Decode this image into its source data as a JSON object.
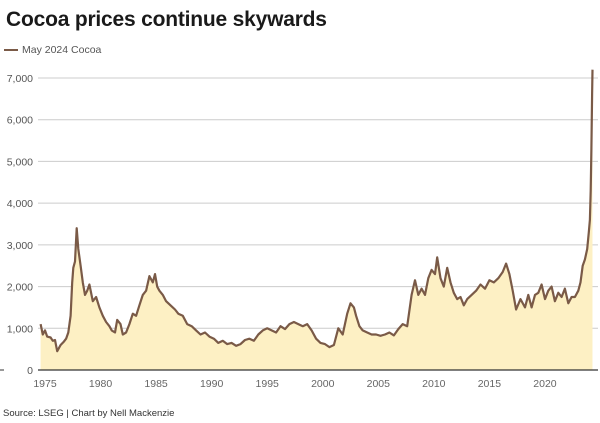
{
  "header": {
    "title": "Cocoa prices continue skywards"
  },
  "legend": {
    "label": "May 2024 Cocoa"
  },
  "footer": {
    "source": "Source: LSEG | Chart by Nell Mackenzie"
  },
  "colors": {
    "line": "#7a5a47",
    "fill": "#fdf0c4",
    "grid": "#cccccc",
    "axis": "#333333"
  },
  "chart_data": {
    "type": "area",
    "title": "Cocoa prices continue skywards",
    "series_name": "May 2024 Cocoa",
    "xlabel": "",
    "ylabel": "",
    "xlim": [
      1974.6,
      2024.3
    ],
    "ylim": [
      0,
      7000
    ],
    "grid": true,
    "legend_position": "top-left",
    "y_ticks": [
      0,
      1000,
      2000,
      3000,
      4000,
      5000,
      6000,
      7000
    ],
    "y_tick_labels": [
      "0",
      "1,000",
      "2,000",
      "3,000",
      "4,000",
      "5,000",
      "6,000",
      "7,000"
    ],
    "x_ticks": [
      1975,
      1980,
      1985,
      1990,
      1995,
      2000,
      2005,
      2010,
      2015,
      2020
    ],
    "x_tick_labels": [
      "1975",
      "1980",
      "1985",
      "1990",
      "1995",
      "2000",
      "2005",
      "2010",
      "2015",
      "2020"
    ],
    "x": [
      1974.6,
      1974.8,
      1975.0,
      1975.2,
      1975.5,
      1975.7,
      1975.9,
      1976.1,
      1976.4,
      1976.7,
      1976.9,
      1977.1,
      1977.3,
      1977.45,
      1977.55,
      1977.7,
      1977.85,
      1978.0,
      1978.2,
      1978.4,
      1978.6,
      1978.8,
      1979.0,
      1979.3,
      1979.6,
      1979.9,
      1980.2,
      1980.5,
      1980.8,
      1981.0,
      1981.3,
      1981.5,
      1981.8,
      1982.0,
      1982.3,
      1982.6,
      1982.9,
      1983.2,
      1983.5,
      1983.8,
      1984.1,
      1984.4,
      1984.7,
      1984.9,
      1985.1,
      1985.3,
      1985.6,
      1985.9,
      1986.3,
      1986.7,
      1987.0,
      1987.4,
      1987.8,
      1988.2,
      1988.6,
      1989.0,
      1989.4,
      1989.8,
      1990.2,
      1990.6,
      1991.0,
      1991.4,
      1991.8,
      1992.2,
      1992.6,
      1993.0,
      1993.4,
      1993.8,
      1994.2,
      1994.6,
      1995.0,
      1995.4,
      1995.8,
      1996.2,
      1996.6,
      1997.0,
      1997.4,
      1997.8,
      1998.2,
      1998.6,
      1999.0,
      1999.4,
      1999.8,
      2000.2,
      2000.6,
      2001.0,
      2001.4,
      2001.8,
      2002.2,
      2002.5,
      2002.8,
      2003.0,
      2003.3,
      2003.6,
      2004.0,
      2004.4,
      2004.8,
      2005.2,
      2005.6,
      2006.0,
      2006.4,
      2006.8,
      2007.2,
      2007.6,
      2008.0,
      2008.3,
      2008.6,
      2008.9,
      2009.2,
      2009.5,
      2009.8,
      2010.1,
      2010.3,
      2010.6,
      2010.9,
      2011.2,
      2011.5,
      2011.8,
      2012.1,
      2012.4,
      2012.7,
      2013.0,
      2013.4,
      2013.8,
      2014.2,
      2014.6,
      2015.0,
      2015.4,
      2015.8,
      2016.2,
      2016.5,
      2016.8,
      2017.1,
      2017.4,
      2017.8,
      2018.2,
      2018.5,
      2018.8,
      2019.1,
      2019.4,
      2019.7,
      2020.0,
      2020.3,
      2020.6,
      2020.9,
      2021.2,
      2021.5,
      2021.8,
      2022.1,
      2022.4,
      2022.7,
      2023.0,
      2023.2,
      2023.4,
      2023.6,
      2023.8,
      2023.95,
      2024.05,
      2024.12,
      2024.18,
      2024.24,
      2024.28
    ],
    "values": [
      1100,
      850,
      950,
      800,
      780,
      700,
      720,
      450,
      600,
      680,
      750,
      900,
      1300,
      2100,
      2450,
      2600,
      3400,
      2900,
      2500,
      2100,
      1800,
      1900,
      2050,
      1650,
      1750,
      1500,
      1300,
      1150,
      1050,
      950,
      900,
      1200,
      1100,
      850,
      900,
      1100,
      1350,
      1300,
      1550,
      1800,
      1900,
      2250,
      2100,
      2300,
      2000,
      1900,
      1800,
      1650,
      1550,
      1450,
      1350,
      1300,
      1100,
      1050,
      950,
      850,
      900,
      800,
      750,
      650,
      700,
      620,
      650,
      580,
      620,
      720,
      750,
      700,
      850,
      950,
      1000,
      950,
      900,
      1050,
      980,
      1100,
      1150,
      1100,
      1050,
      1100,
      950,
      750,
      650,
      620,
      550,
      600,
      1000,
      850,
      1350,
      1600,
      1500,
      1300,
      1050,
      950,
      900,
      850,
      850,
      820,
      850,
      900,
      830,
      980,
      1100,
      1050,
      1800,
      2150,
      1800,
      1950,
      1800,
      2200,
      2400,
      2300,
      2700,
      2200,
      2000,
      2450,
      2100,
      1850,
      1700,
      1750,
      1550,
      1700,
      1800,
      1900,
      2050,
      1950,
      2150,
      2100,
      2200,
      2350,
      2550,
      2300,
      1900,
      1450,
      1700,
      1500,
      1800,
      1500,
      1800,
      1850,
      2050,
      1700,
      1900,
      2000,
      1650,
      1850,
      1750,
      1950,
      1600,
      1750,
      1750,
      1900,
      2100,
      2500,
      2650,
      2900,
      3300,
      3600,
      4300,
      5300,
      6600,
      7200
    ]
  }
}
